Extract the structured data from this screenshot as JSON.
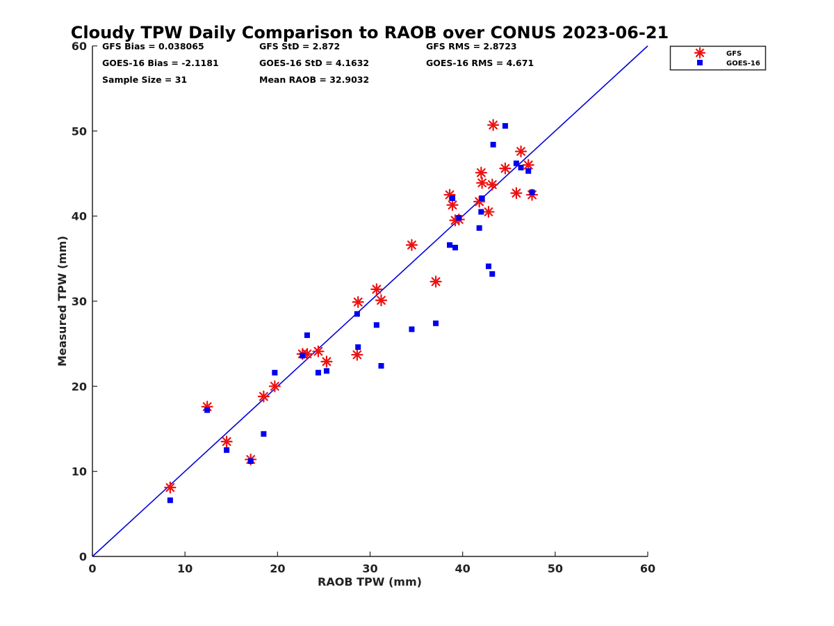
{
  "chart_data": {
    "type": "scatter",
    "title": "Cloudy TPW Daily Comparison to RAOB over CONUS 2023-06-21",
    "xlabel": "RAOB TPW (mm)",
    "ylabel": "Measured TPW (mm)",
    "xlim": [
      0,
      60
    ],
    "ylim": [
      0,
      60
    ],
    "xticks": [
      "0",
      "10",
      "20",
      "30",
      "40",
      "50",
      "60"
    ],
    "yticks": [
      "0",
      "10",
      "20",
      "30",
      "40",
      "50",
      "60"
    ],
    "grid": false,
    "legend_position": "outside-top-right",
    "reference_line": {
      "x": [
        0,
        60
      ],
      "y": [
        0,
        60
      ],
      "color": "#0000dd"
    },
    "stats": [
      "GFS Bias = 0.038065",
      "GFS StD = 2.872",
      "GFS RMS = 2.8723",
      "GOES-16 Bias = -2.1181",
      "GOES-16 StD = 4.1632",
      "GOES-16 RMS = 4.671",
      "Sample Size = 31",
      "Mean RAOB = 32.9032"
    ],
    "series": [
      {
        "name": "GFS",
        "marker": "asterisk",
        "color": "#ee1111",
        "x": [
          8.4,
          12.4,
          14.5,
          17.1,
          18.5,
          19.7,
          22.7,
          23.2,
          24.4,
          25.3,
          28.6,
          28.7,
          30.7,
          31.2,
          34.5,
          37.1,
          38.6,
          38.9,
          39.2,
          39.6,
          41.8,
          42.0,
          42.1,
          42.8,
          43.2,
          43.3,
          44.6,
          45.8,
          46.3,
          47.1,
          47.5
        ],
        "y": [
          8.1,
          17.6,
          13.5,
          11.4,
          18.8,
          20.0,
          23.8,
          23.8,
          24.1,
          22.9,
          23.7,
          29.9,
          31.4,
          30.1,
          36.6,
          32.3,
          42.5,
          41.3,
          39.5,
          39.6,
          41.7,
          45.1,
          43.9,
          40.5,
          43.7,
          50.7,
          45.6,
          42.7,
          47.6,
          46.0,
          42.5
        ]
      },
      {
        "name": "GOES-16",
        "marker": "square",
        "color": "#0000ee",
        "x": [
          8.4,
          12.4,
          14.5,
          17.1,
          18.5,
          19.7,
          22.7,
          23.2,
          24.4,
          25.3,
          28.6,
          28.7,
          30.7,
          31.2,
          34.5,
          37.1,
          38.6,
          38.9,
          39.2,
          39.6,
          41.8,
          42.0,
          42.1,
          42.8,
          43.2,
          43.3,
          44.6,
          45.8,
          46.3,
          47.1,
          47.5
        ],
        "y": [
          6.6,
          17.2,
          12.5,
          11.2,
          14.4,
          21.6,
          23.6,
          26.0,
          21.6,
          21.8,
          28.5,
          24.6,
          27.2,
          22.4,
          26.7,
          27.4,
          36.6,
          42.1,
          36.3,
          39.8,
          38.6,
          40.5,
          42.1,
          34.1,
          33.2,
          48.4,
          50.6,
          46.2,
          45.7,
          45.3,
          42.8
        ]
      }
    ]
  }
}
